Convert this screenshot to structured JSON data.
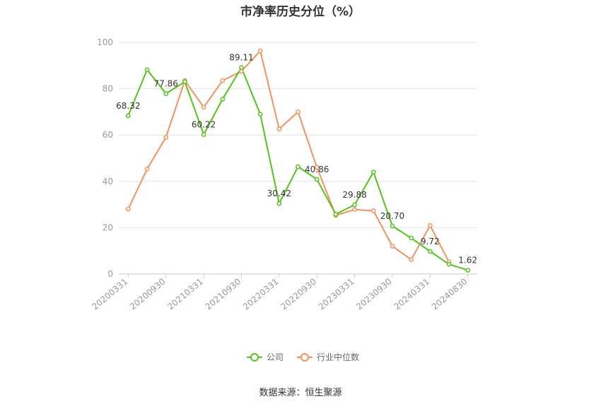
{
  "title": "市净率历史分位（%）",
  "source": "数据来源：恒生聚源",
  "chart_data": {
    "type": "line",
    "title": "市净率历史分位（%）",
    "ylim": [
      0,
      100
    ],
    "yticks": [
      "0",
      "20",
      "40",
      "60",
      "80",
      "100"
    ],
    "grid": true,
    "legend_position": "bottom",
    "x": [
      "20200331",
      "20200630",
      "20200930",
      "20201231",
      "20210331",
      "20210630",
      "20210930",
      "20211231",
      "20220331",
      "20220630",
      "20220930",
      "20221231",
      "20230331",
      "20230630",
      "20230930",
      "20231231",
      "20240331",
      "20240630",
      "20240830"
    ],
    "x_tick_labels": [
      "20200331",
      "20200930",
      "20210331",
      "20210930",
      "20220331",
      "20220930",
      "20230331",
      "20230930",
      "20240331",
      "20240830"
    ],
    "series": [
      {
        "name": "公司",
        "color": "#52c41a",
        "values": [
          68.32,
          88.2,
          77.86,
          83.0,
          60.22,
          75.5,
          89.11,
          69.0,
          30.42,
          46.3,
          40.86,
          25.8,
          29.88,
          44.0,
          20.7,
          15.5,
          9.72,
          4.2,
          1.62
        ],
        "labels": {
          "0": "68.32",
          "2": "77.86",
          "4": "60.22",
          "6": "89.11",
          "8": "30.42",
          "10": "40.86",
          "12": "29.88",
          "14": "20.70",
          "16": "9.72",
          "18": "1.62"
        }
      },
      {
        "name": "行业中位数",
        "color": "#f4925f",
        "values": [
          28.0,
          45.3,
          59.0,
          83.5,
          72.0,
          83.5,
          87.5,
          96.3,
          62.6,
          70.0,
          46.0,
          25.3,
          27.8,
          27.3,
          12.0,
          6.2,
          20.9,
          5.2,
          null
        ]
      }
    ]
  }
}
